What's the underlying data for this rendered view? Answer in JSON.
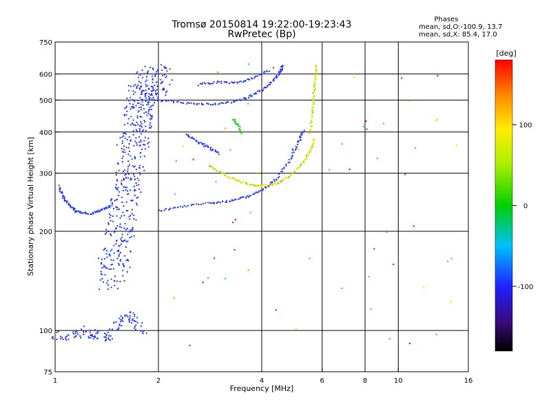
{
  "chart_data": {
    "type": "scatter",
    "title_lines": [
      "Tromsø 20150814 19:22:00-19:23:43",
      "RwPretec (Bp)"
    ],
    "phase_info": {
      "title": "Phases",
      "line_o": "mean, sd,O:-100.9, 13.7",
      "line_x": "mean, sd,X:  85.4, 17.0"
    },
    "xlabel": "Frequency [MHz]",
    "ylabel": "Stationary phase Virtual Height [km]",
    "x_scale": "log",
    "y_scale": "log",
    "x_range": [
      1,
      16
    ],
    "y_range": [
      75,
      750
    ],
    "x_tick_labels": [
      "1",
      "2",
      "4",
      "6",
      "8",
      "10",
      "16"
    ],
    "x_tick_values": [
      1,
      2,
      4,
      6,
      8,
      10,
      16
    ],
    "x_grid_values": [
      2,
      4,
      6,
      8,
      10
    ],
    "y_tick_labels": [
      "750",
      "600",
      "500",
      "400",
      "300",
      "200",
      "100",
      "75"
    ],
    "y_tick_values": [
      750,
      600,
      500,
      400,
      300,
      200,
      100,
      75
    ],
    "y_grid_values": [
      600,
      500,
      400,
      300,
      200,
      100
    ],
    "grid": true,
    "legend": "colorbar, right",
    "colorbar": {
      "unit_label": "[deg]",
      "range": [
        -180,
        180
      ],
      "tick_labels": [
        "100",
        "0",
        "-100"
      ],
      "tick_values": [
        100,
        0,
        -100
      ]
    },
    "colors": {
      "o_mode": "#1e3cff",
      "o_mode_dark": "#3b1fc8",
      "x_mode": "#e8e000",
      "x_mode_green": "#8ad400",
      "green_patch": "#33cc33",
      "cyan_noise": "#00bfff",
      "orange_noise": "#ff7f00",
      "red_noise": "#e00000"
    },
    "series": [
      {
        "mode": "O",
        "segments": [
          {
            "trace": "F2 O-mode lower",
            "points": [
              [
                2.0,
                232
              ],
              [
                2.3,
                238
              ],
              [
                2.8,
                245
              ],
              [
                3.2,
                248
              ],
              [
                3.6,
                255
              ],
              [
                4.0,
                268
              ],
              [
                4.4,
                290
              ],
              [
                4.8,
                330
              ],
              [
                5.1,
                375
              ],
              [
                5.3,
                410
              ]
            ]
          },
          {
            "trace": "F2 O-mode upper",
            "points": [
              [
                2.0,
                500
              ],
              [
                2.4,
                492
              ],
              [
                2.8,
                488
              ],
              [
                3.2,
                493
              ],
              [
                3.6,
                510
              ],
              [
                4.0,
                540
              ],
              [
                4.3,
                575
              ],
              [
                4.5,
                610
              ],
              [
                4.6,
                640
              ]
            ]
          },
          {
            "trace": "spread F 1.4-2.1 MHz",
            "points": [
              [
                1.45,
                140
              ],
              [
                1.5,
                170
              ],
              [
                1.55,
                210
              ],
              [
                1.6,
                260
              ],
              [
                1.65,
                320
              ],
              [
                1.7,
                390
              ],
              [
                1.75,
                460
              ],
              [
                1.8,
                520
              ],
              [
                1.9,
                560
              ],
              [
                2.0,
                590
              ]
            ]
          },
          {
            "trace": "low E-region echoes",
            "points": [
              [
                1.0,
                98
              ],
              [
                1.1,
                96
              ],
              [
                1.2,
                100
              ],
              [
                1.3,
                98
              ],
              [
                1.4,
                95
              ],
              [
                1.5,
                105
              ],
              [
                1.6,
                112
              ],
              [
                1.7,
                108
              ],
              [
                1.8,
                100
              ]
            ]
          },
          {
            "trace": "echo near 1.0-1.3 MHz",
            "points": [
              [
                1.02,
                275
              ],
              [
                1.05,
                255
              ],
              [
                1.1,
                240
              ],
              [
                1.15,
                230
              ],
              [
                1.25,
                227
              ],
              [
                1.35,
                232
              ],
              [
                1.45,
                240
              ]
            ]
          },
          {
            "trace": "oblique 2.4-2.9 MHz",
            "points": [
              [
                2.4,
                395
              ],
              [
                2.6,
                375
              ],
              [
                2.8,
                360
              ],
              [
                3.0,
                345
              ]
            ]
          },
          {
            "trace": "O-mode top arc",
            "points": [
              [
                2.6,
                560
              ],
              [
                3.0,
                570
              ],
              [
                3.4,
                565
              ],
              [
                3.8,
                590
              ],
              [
                4.2,
                620
              ]
            ]
          }
        ]
      },
      {
        "mode": "X",
        "segments": [
          {
            "trace": "F2 X-mode lower",
            "points": [
              [
                2.8,
                318
              ],
              [
                3.1,
                298
              ],
              [
                3.4,
                285
              ],
              [
                3.7,
                278
              ],
              [
                4.0,
                276
              ],
              [
                4.4,
                280
              ],
              [
                4.8,
                295
              ],
              [
                5.2,
                320
              ],
              [
                5.5,
                350
              ],
              [
                5.7,
                385
              ]
            ]
          },
          {
            "trace": "F2 X-mode trace to top",
            "points": [
              [
                5.5,
                400
              ],
              [
                5.6,
                460
              ],
              [
                5.65,
                520
              ],
              [
                5.7,
                580
              ],
              [
                5.75,
                640
              ]
            ]
          },
          {
            "trace": "green patch",
            "points": [
              [
                3.3,
                440
              ],
              [
                3.4,
                420
              ],
              [
                3.5,
                395
              ]
            ]
          }
        ]
      }
    ]
  }
}
